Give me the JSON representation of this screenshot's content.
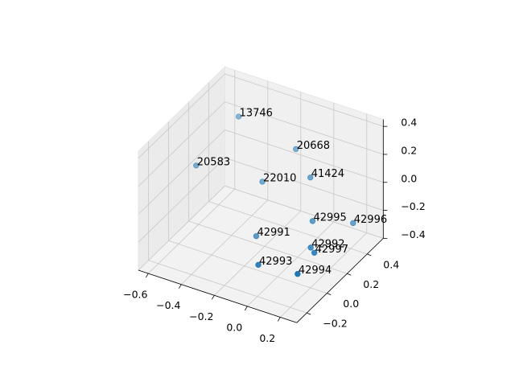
{
  "chart_data": {
    "type": "scatter3d",
    "x": [
      -0.4,
      -0.12,
      -0.56,
      -0.25,
      -0.02,
      0.03,
      0.19,
      -0.22,
      0.08,
      0.12,
      -0.11,
      0.11
    ],
    "y": [
      0.27,
      0.38,
      0.11,
      0.26,
      0.36,
      0.3,
      0.44,
      0.15,
      0.2,
      0.17,
      -0.01,
      0.02
    ],
    "z": [
      0.4,
      0.2,
      0.1,
      0.0,
      0.05,
      -0.2,
      -0.25,
      -0.3,
      -0.3,
      -0.3,
      -0.35,
      -0.35
    ],
    "labels": [
      "13746",
      "20668",
      "20583",
      "22010",
      "41424",
      "42995",
      "42996",
      "42991",
      "42992",
      "42997",
      "42993",
      "42994"
    ],
    "color": "#1f77b4",
    "xlim": [
      -0.66,
      0.3
    ],
    "ylim": [
      -0.3,
      0.56
    ],
    "zlim": [
      -0.4,
      0.45
    ],
    "xticks": [
      {
        "value": -0.6,
        "label": "−0.6"
      },
      {
        "value": -0.4,
        "label": "−0.4"
      },
      {
        "value": -0.2,
        "label": "−0.2"
      },
      {
        "value": 0,
        "label": "0.0"
      },
      0.2
    ],
    "yticks": [
      {
        "value": -0.2,
        "label": "−0.2"
      },
      {
        "value": 0,
        "label": "0.0"
      },
      0.2,
      0.4
    ],
    "zticks": [
      {
        "value": -0.4,
        "label": "−0.4"
      },
      {
        "value": -0.2,
        "label": "−0.2"
      },
      {
        "value": 0,
        "label": "0.0"
      },
      0.2,
      0.4
    ],
    "grid": true
  }
}
